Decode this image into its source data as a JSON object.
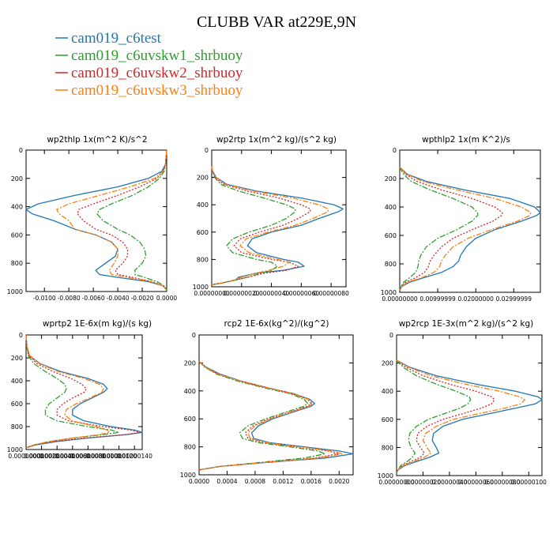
{
  "figure": {
    "title": "CLUBB VAR at229E,9N",
    "legend": [
      {
        "name": "cam019_c6test",
        "color": "#1f77b4",
        "dash": "solid"
      },
      {
        "name": "cam019_c6uvskw1_shrbuoy",
        "color": "#2ca02c",
        "dash": "dashdot"
      },
      {
        "name": "cam019_c6uvskw2_shrbuoy",
        "color": "#d62728",
        "dash": "dotted"
      },
      {
        "name": "cam019_c6uvskw3_shrbuoy",
        "color": "#ff7f0e",
        "dash": "dashdot"
      }
    ]
  },
  "chart_data": [
    {
      "type": "line",
      "title": "wp2thlp 1x(m^2 K)/s^2",
      "xlim": [
        -0.0115,
        0.0
      ],
      "ylim": [
        0,
        1000
      ],
      "y_inverted": true,
      "xticks": [
        -0.01,
        -0.008,
        -0.006,
        -0.004,
        -0.002,
        0.0
      ],
      "xtick_labels": [
        "-0.0100",
        "-0.0080",
        "-0.0060",
        "-0.0040",
        "-0.0020",
        "0.0000"
      ],
      "yticks": [
        0,
        200,
        400,
        600,
        800,
        1000
      ],
      "ytick_labels": [
        "0",
        "200",
        "400",
        "600",
        "800",
        "1000"
      ],
      "y": [
        0,
        100,
        150,
        200,
        260,
        320,
        380,
        420,
        450,
        500,
        560,
        600,
        650,
        700,
        750,
        800,
        850,
        880,
        900,
        930,
        960,
        990
      ],
      "series": [
        {
          "name": "cam019_c6test",
          "x": [
            0.0,
            -0.0001,
            -0.0004,
            -0.0015,
            -0.004,
            -0.0075,
            -0.0105,
            -0.0115,
            -0.011,
            -0.0092,
            -0.0075,
            -0.0058,
            -0.0045,
            -0.004,
            -0.0042,
            -0.005,
            -0.0058,
            -0.0055,
            -0.004,
            -0.0015,
            -0.0003,
            0.0
          ]
        },
        {
          "name": "cam019_c6uvskw1_shrbuoy",
          "x": [
            0.0,
            -0.0001,
            -0.0002,
            -0.0006,
            -0.0015,
            -0.0028,
            -0.0045,
            -0.0055,
            -0.0057,
            -0.0052,
            -0.004,
            -0.003,
            -0.0022,
            -0.0018,
            -0.0017,
            -0.002,
            -0.0026,
            -0.0026,
            -0.0018,
            -0.0008,
            -0.0002,
            0.0
          ]
        },
        {
          "name": "cam019_c6uvskw2_shrbuoy",
          "x": [
            0.0,
            -0.0001,
            -0.0003,
            -0.0008,
            -0.0022,
            -0.004,
            -0.006,
            -0.0072,
            -0.0073,
            -0.0068,
            -0.0058,
            -0.0045,
            -0.0036,
            -0.0032,
            -0.0032,
            -0.0036,
            -0.0042,
            -0.004,
            -0.0028,
            -0.0012,
            -0.0003,
            0.0
          ]
        },
        {
          "name": "cam019_c6uvskw3_shrbuoy",
          "x": [
            0.0,
            -0.0001,
            -0.0003,
            -0.001,
            -0.003,
            -0.0055,
            -0.008,
            -0.009,
            -0.0088,
            -0.008,
            -0.0075,
            -0.0058,
            -0.0045,
            -0.004,
            -0.004,
            -0.0043,
            -0.0047,
            -0.0045,
            -0.0032,
            -0.0013,
            -0.0003,
            0.0
          ]
        }
      ]
    },
    {
      "type": "line",
      "title": "wp2rtp 1x(m^2 kg)/(s^2 kg)",
      "xlim": [
        0.0,
        9e-07
      ],
      "ylim": [
        0,
        1000
      ],
      "y_inverted": true,
      "xticks": [
        0.0,
        2e-07,
        4e-07,
        6e-07,
        8e-07
      ],
      "xtick_labels": [
        "0.00000000",
        "0.00000020",
        "0.00000040",
        "0.00000060",
        "0.00000080"
      ],
      "yticks": [
        0,
        200,
        400,
        600,
        800,
        1000
      ],
      "ytick_labels": [
        "0",
        "200",
        "400",
        "600",
        "800",
        "1000"
      ],
      "y": [
        120,
        150,
        200,
        250,
        300,
        350,
        400,
        430,
        450,
        500,
        550,
        600,
        650,
        700,
        750,
        800,
        820,
        850,
        880,
        900,
        930,
        950,
        970,
        985
      ],
      "series": [
        {
          "name": "cam019_c6test",
          "x": [
            0.0,
            5e-09,
            3e-08,
            1e-07,
            3e-07,
            6e-07,
            8.2e-07,
            8.8e-07,
            8.5e-07,
            7.2e-07,
            6e-07,
            4e-07,
            2.7e-07,
            2.4e-07,
            3e-07,
            4.8e-07,
            5.8e-07,
            6.2e-07,
            4.8e-07,
            3e-07,
            1.8e-07,
            1.6e-07,
            8e-08,
            0.0
          ]
        },
        {
          "name": "cam019_c6uvskw1_shrbuoy",
          "x": [
            0.0,
            5e-09,
            2e-08,
            6e-08,
            1.8e-07,
            3.5e-07,
            5e-07,
            5.6e-07,
            5.6e-07,
            5e-07,
            4e-07,
            2.5e-07,
            1.4e-07,
            1e-07,
            1.4e-07,
            3e-07,
            4e-07,
            4.4e-07,
            4e-07,
            3.3e-07,
            2.4e-07,
            1.6e-07,
            8e-08,
            0.0
          ]
        },
        {
          "name": "cam019_c6uvskw2_shrbuoy",
          "x": [
            0.0,
            5e-09,
            2e-08,
            8e-08,
            2.4e-07,
            4.5e-07,
            6e-07,
            6.6e-07,
            6.6e-07,
            5.8e-07,
            4.8e-07,
            3.2e-07,
            1.9e-07,
            1.5e-07,
            2e-07,
            4e-07,
            5.2e-07,
            5.8e-07,
            5e-07,
            3.6e-07,
            2.4e-07,
            1.6e-07,
            8e-08,
            0.0
          ]
        },
        {
          "name": "cam019_c6uvskw3_shrbuoy",
          "x": [
            0.0,
            5e-09,
            3e-08,
            9e-08,
            2.8e-07,
            5.4e-07,
            7.2e-07,
            7.8e-07,
            7.8e-07,
            6.8e-07,
            5.6e-07,
            3.8e-07,
            2.3e-07,
            1.9e-07,
            2.5e-07,
            4.4e-07,
            5.2e-07,
            4.8e-07,
            3.8e-07,
            3e-07,
            2e-07,
            1.5e-07,
            8e-08,
            0.0
          ]
        }
      ]
    },
    {
      "type": "line",
      "title": "wpthlp2 1x(m K^2)/s",
      "xlim": [
        0.0,
        0.037
      ],
      "ylim": [
        0,
        1000
      ],
      "y_inverted": true,
      "xticks": [
        0.0,
        0.01,
        0.02,
        0.03
      ],
      "xtick_labels": [
        "0.00000000",
        "0.00999999",
        "0.02000000",
        "0.02999999"
      ],
      "yticks": [
        0,
        200,
        400,
        600,
        800,
        1000
      ],
      "ytick_labels": [
        "0",
        "200",
        "400",
        "600",
        "800",
        "1000"
      ],
      "y": [
        120,
        170,
        220,
        280,
        340,
        400,
        440,
        460,
        500,
        560,
        620,
        680,
        740,
        780,
        820,
        860,
        900,
        930,
        960,
        985
      ],
      "series": [
        {
          "name": "cam019_c6test",
          "x": [
            0.0,
            0.002,
            0.007,
            0.017,
            0.029,
            0.0355,
            0.037,
            0.036,
            0.032,
            0.025,
            0.02,
            0.0175,
            0.016,
            0.0155,
            0.014,
            0.011,
            0.006,
            0.0025,
            0.0005,
            0.0
          ]
        },
        {
          "name": "cam019_c6uvskw1_shrbuoy",
          "x": [
            0.0,
            0.001,
            0.003,
            0.008,
            0.014,
            0.019,
            0.0205,
            0.0205,
            0.019,
            0.015,
            0.01,
            0.007,
            0.0055,
            0.005,
            0.0048,
            0.0042,
            0.0025,
            0.001,
            0.0003,
            0.0
          ]
        },
        {
          "name": "cam019_c6uvskw2_shrbuoy",
          "x": [
            0.0,
            0.0015,
            0.0045,
            0.011,
            0.019,
            0.025,
            0.027,
            0.0268,
            0.0245,
            0.019,
            0.014,
            0.011,
            0.009,
            0.008,
            0.0075,
            0.0065,
            0.004,
            0.0015,
            0.0004,
            0.0
          ]
        },
        {
          "name": "cam019_c6uvskw3_shrbuoy",
          "x": [
            0.0,
            0.0018,
            0.006,
            0.015,
            0.025,
            0.032,
            0.0345,
            0.0342,
            0.031,
            0.024,
            0.018,
            0.014,
            0.012,
            0.011,
            0.0105,
            0.009,
            0.0055,
            0.002,
            0.0005,
            0.0
          ]
        }
      ]
    },
    {
      "type": "line",
      "title": "wprtp2 1E-6x(m kg)/(s kg)",
      "xlim": [
        0.0,
        1.5e-06
      ],
      "ylim": [
        0,
        1000
      ],
      "y_inverted": true,
      "xticks": [
        0.0,
        2e-07,
        4e-07,
        6e-07,
        8e-07,
        1e-06,
        1.2e-06,
        1.4e-06
      ],
      "xtick_labels": [
        "0.00000000",
        "0.00000020",
        "0.00000040",
        "0.00000060",
        "0.00000080",
        "0.00000100",
        "0.00000120",
        "0.00000140"
      ],
      "yticks": [
        0,
        200,
        400,
        600,
        800,
        1000
      ],
      "ytick_labels": [
        "0",
        "200",
        "400",
        "600",
        "800",
        "1000"
      ],
      "y": [
        0,
        100,
        180,
        250,
        320,
        380,
        430,
        470,
        500,
        550,
        600,
        650,
        700,
        750,
        800,
        830,
        850,
        870,
        900,
        930,
        960,
        985
      ],
      "series": [
        {
          "name": "cam019_c6test",
          "x": [
            0.0,
            1e-08,
            4e-08,
            1.8e-07,
            4.5e-07,
            8e-07,
            1e-06,
            1.05e-06,
            1e-06,
            8.5e-07,
            7e-07,
            6e-07,
            6e-07,
            7.5e-07,
            1.1e-06,
            1.4e-06,
            1.5e-06,
            1.3e-06,
            8e-07,
            4e-07,
            1.2e-07,
            0.0
          ]
        },
        {
          "name": "cam019_c6uvskw1_shrbuoy",
          "x": [
            0.0,
            1e-08,
            3e-08,
            1e-07,
            2.5e-07,
            4e-07,
            5e-07,
            5.2e-07,
            5e-07,
            4e-07,
            3e-07,
            2.5e-07,
            2.5e-07,
            4e-07,
            8e-07,
            1.1e-06,
            1.2e-06,
            1e-06,
            6e-07,
            3e-07,
            1e-07,
            0.0
          ]
        },
        {
          "name": "cam019_c6uvskw2_shrbuoy",
          "x": [
            0.0,
            1e-08,
            4e-08,
            1.4e-07,
            3.5e-07,
            5.8e-07,
            7.2e-07,
            7.8e-07,
            7.5e-07,
            6e-07,
            4.8e-07,
            4e-07,
            4e-07,
            5.5e-07,
            1e-06,
            1.35e-06,
            1.48e-06,
            1.28e-06,
            7.5e-07,
            3.6e-07,
            1.1e-07,
            0.0
          ]
        },
        {
          "name": "cam019_c6uvskw3_shrbuoy",
          "x": [
            0.0,
            1e-08,
            5e-08,
            1.7e-07,
            4.2e-07,
            7.5e-07,
            9.5e-07,
            1e-06,
            9.8e-07,
            8.2e-07,
            6.5e-07,
            5.2e-07,
            5e-07,
            6e-07,
            9e-07,
            1.05e-06,
            1.08e-06,
            9.5e-07,
            6e-07,
            3e-07,
            1e-07,
            0.0
          ]
        }
      ]
    },
    {
      "type": "line",
      "title": "rcp2 1E-6x(kg^2)/(kg^2)",
      "xlim": [
        0.0,
        0.0022
      ],
      "ylim": [
        0,
        1000
      ],
      "y_inverted": true,
      "xticks": [
        0.0,
        0.0004,
        0.0008,
        0.0012,
        0.0016,
        0.002
      ],
      "xtick_labels": [
        "0.0000",
        "0.0004",
        "0.0008",
        "0.0012",
        "0.0016",
        "0.0020"
      ],
      "yticks": [
        0,
        200,
        400,
        600,
        800,
        1000
      ],
      "ytick_labels": [
        "0",
        "200",
        "400",
        "600",
        "800",
        "1000"
      ],
      "y": [
        190,
        230,
        280,
        330,
        380,
        420,
        460,
        490,
        510,
        550,
        600,
        650,
        700,
        740,
        770,
        800,
        830,
        850,
        880,
        910,
        940,
        965
      ],
      "series": [
        {
          "name": "cam019_c6test",
          "x": [
            0.0,
            0.0001,
            0.0003,
            0.0006,
            0.001,
            0.00135,
            0.00158,
            0.00165,
            0.0016,
            0.00135,
            0.00105,
            0.00085,
            0.00075,
            0.00078,
            0.001,
            0.0015,
            0.002,
            0.0022,
            0.0018,
            0.001,
            0.0003,
            0.0
          ]
        },
        {
          "name": "cam019_c6uvskw1_shrbuoy",
          "x": [
            0.0,
            8e-05,
            0.00025,
            0.00055,
            0.00095,
            0.0013,
            0.0015,
            0.00155,
            0.0015,
            0.00125,
            0.00095,
            0.0007,
            0.00058,
            0.00062,
            0.00085,
            0.0013,
            0.0017,
            0.0018,
            0.0015,
            0.0009,
            0.0003,
            0.0
          ]
        },
        {
          "name": "cam019_c6uvskw2_shrbuoy",
          "x": [
            0.0,
            9e-05,
            0.00027,
            0.00058,
            0.00098,
            0.00133,
            0.00155,
            0.0016,
            0.00155,
            0.0013,
            0.001,
            0.00077,
            0.00066,
            0.0007,
            0.00092,
            0.0014,
            0.00185,
            0.00198,
            0.00165,
            0.00095,
            0.0003,
            0.0
          ]
        },
        {
          "name": "cam019_c6uvskw3_shrbuoy",
          "x": [
            0.0,
            9e-05,
            0.00028,
            0.00059,
            0.001,
            0.00134,
            0.00156,
            0.00162,
            0.00157,
            0.00132,
            0.00102,
            0.0008,
            0.0007,
            0.00073,
            0.00095,
            0.00143,
            0.0019,
            0.00205,
            0.0017,
            0.00097,
            0.0003,
            0.0
          ]
        }
      ]
    },
    {
      "type": "line",
      "title": "wp2rcp 1E-3x(m^2 kg)/(s^2 kg)",
      "xlim": [
        0.0,
        1.1e-06
      ],
      "ylim": [
        0,
        1000
      ],
      "y_inverted": true,
      "xticks": [
        0.0,
        2e-07,
        4e-07,
        6e-07,
        8e-07,
        1e-06
      ],
      "xtick_labels": [
        "0.00000000",
        "0.00000020",
        "0.00000040",
        "0.00000060",
        "0.00000080",
        "0.00000100"
      ],
      "yticks": [
        0,
        200,
        400,
        600,
        800,
        1000
      ],
      "ytick_labels": [
        "0",
        "200",
        "400",
        "600",
        "800",
        "1000"
      ],
      "y": [
        180,
        230,
        290,
        350,
        400,
        440,
        460,
        490,
        520,
        560,
        600,
        650,
        700,
        750,
        800,
        840,
        870,
        900,
        930,
        960,
        985
      ],
      "series": [
        {
          "name": "cam019_c6test",
          "x": [
            0.0,
            1e-07,
            3e-07,
            6e-07,
            9e-07,
            1.07e-06,
            1.1e-06,
            1.05e-06,
            9e-07,
            7e-07,
            5e-07,
            3.5e-07,
            2.8e-07,
            2.7e-07,
            3e-07,
            3.2e-07,
            2.5e-07,
            1.5e-07,
            6e-08,
            1e-08,
            0.0
          ]
        },
        {
          "name": "cam019_c6uvskw1_shrbuoy",
          "x": [
            0.0,
            5e-08,
            1.5e-07,
            3e-07,
            4.5e-07,
            5.5e-07,
            5.6e-07,
            5.4e-07,
            4.8e-07,
            3.6e-07,
            2.4e-07,
            1.5e-07,
            1e-07,
            9e-08,
            1.1e-07,
            1.4e-07,
            1.2e-07,
            8e-08,
            3e-08,
            1e-08,
            0.0
          ]
        },
        {
          "name": "cam019_c6uvskw2_shrbuoy",
          "x": [
            0.0,
            7e-08,
            2e-07,
            4e-07,
            6e-07,
            7.2e-07,
            7.4e-07,
            7.2e-07,
            6.4e-07,
            5e-07,
            3.5e-07,
            2.3e-07,
            1.6e-07,
            1.5e-07,
            1.8e-07,
            2.1e-07,
            1.8e-07,
            1.1e-07,
            4e-08,
            1e-08,
            0.0
          ]
        },
        {
          "name": "cam019_c6uvskw3_shrbuoy",
          "x": [
            0.0,
            9e-08,
            2.6e-07,
            5.2e-07,
            7.8e-07,
            9.3e-07,
            9.7e-07,
            9.4e-07,
            8.2e-07,
            6.2e-07,
            4.3e-07,
            3e-07,
            2.2e-07,
            2e-07,
            2.3e-07,
            2.6e-07,
            2.1e-07,
            1.3e-07,
            5e-08,
            1e-08,
            0.0
          ]
        }
      ]
    }
  ]
}
